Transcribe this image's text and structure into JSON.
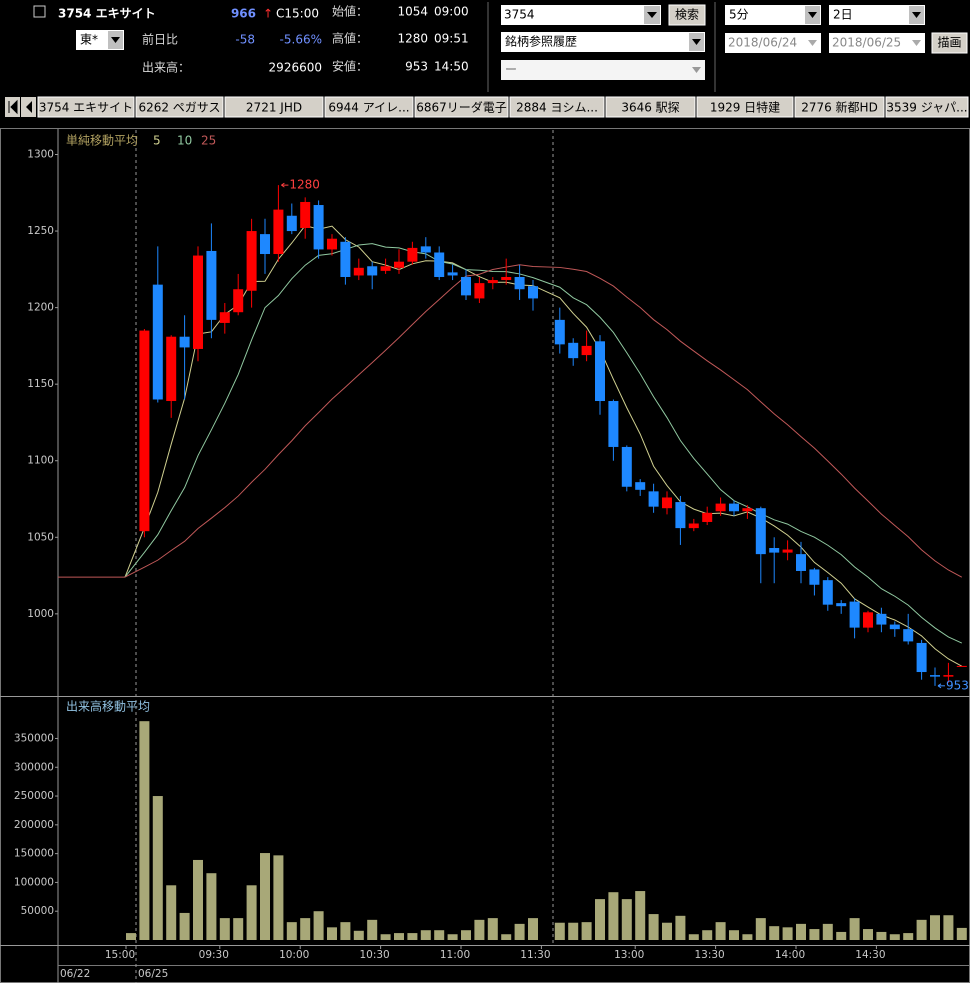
{
  "header": {
    "symbol_name": "3754 エキサイト",
    "price": "966",
    "price_arrow": "↑",
    "price_time": "C15:00",
    "market": "東*",
    "change_label": "前日比",
    "change": "-58",
    "change_pct": "-5.66%",
    "volume_label": "出来高：",
    "volume": "2926600",
    "open_label": "始値：",
    "open": "1054",
    "open_time": "09:00",
    "high_label": "高値：",
    "high": "1280",
    "high_time": "09:51",
    "low_label": "安値：",
    "low": "953",
    "low_time": "14:50"
  },
  "controls": {
    "code": "3754",
    "search": "検索",
    "history": "銘柄参照履歴",
    "blank": "ー",
    "interval": "5分",
    "days": "2日",
    "from": "2018/06/24",
    "to": "2018/06/25",
    "draw": "描画"
  },
  "tabs": [
    "3754 エキサイト",
    "6262 ペガサス",
    "2721 JHD",
    "6944 アイレ...",
    "6867リーダ電子",
    "2884 ヨシム...",
    "3646 駅探",
    "1929 日特建",
    "2776 新都HD",
    "3539 ジャパ..."
  ],
  "chart_data": [
    {
      "type": "candlestick",
      "title": "単純移動平均",
      "moving_averages": [
        {
          "period": 5,
          "color": "#d0d090"
        },
        {
          "period": 10,
          "color": "#90c8a0"
        },
        {
          "period": 25,
          "color": "#c05858"
        }
      ],
      "up_color": "#ff0000",
      "down_color": "#1e88ff",
      "previous_close": 1024,
      "open": [
        null,
        1054,
        1215,
        1139,
        1181,
        1173,
        1237,
        1190,
        1197,
        1211,
        1248,
        1235,
        1260,
        1252,
        1267,
        1238,
        1243,
        1221,
        1227,
        1224,
        1226,
        1230,
        1240,
        1236,
        1223,
        1220,
        1206,
        1216,
        1218,
        1220,
        1214,
        null,
        1192,
        1177,
        1169,
        1178,
        1139,
        1109,
        1086,
        1080,
        1069,
        1073,
        1056,
        1060,
        1067,
        1072,
        1067,
        1069,
        1043,
        1040,
        1039,
        1029,
        1022,
        1007,
        1008,
        991,
        1000,
        993,
        990,
        981,
        960,
        959,
        966
      ],
      "high": [
        null,
        1186,
        1240,
        1182,
        1195,
        1240,
        1255,
        1203,
        1222,
        1258,
        1258,
        1280,
        1268,
        1272,
        1270,
        1248,
        1246,
        1232,
        1230,
        1232,
        1238,
        1243,
        1246,
        1240,
        1228,
        1225,
        1220,
        1220,
        1232,
        1228,
        1218,
        null,
        1200,
        1180,
        1185,
        1182,
        1140,
        1110,
        1088,
        1085,
        1080,
        1077,
        1062,
        1070,
        1076,
        1074,
        1071,
        1070,
        1050,
        1048,
        1047,
        1030,
        1024,
        1009,
        1010,
        1002,
        1004,
        995,
        1000,
        983,
        965,
        968,
        966
      ],
      "low": [
        null,
        1050,
        1138,
        1128,
        1140,
        1165,
        1180,
        1183,
        1195,
        1200,
        1222,
        1230,
        1248,
        1245,
        1232,
        1234,
        1215,
        1218,
        1212,
        1222,
        1222,
        1228,
        1232,
        1218,
        1218,
        1205,
        1203,
        1212,
        1215,
        1205,
        1198,
        null,
        1170,
        1162,
        1165,
        1130,
        1100,
        1080,
        1077,
        1066,
        1065,
        1045,
        1054,
        1058,
        1064,
        1064,
        1062,
        1020,
        1020,
        1035,
        1020,
        1012,
        1002,
        1000,
        984,
        988,
        988,
        985,
        980,
        957,
        953,
        955,
        966
      ],
      "close": [
        null,
        1185,
        1140,
        1181,
        1174,
        1234,
        1192,
        1197,
        1212,
        1250,
        1235,
        1264,
        1250,
        1269,
        1238,
        1245,
        1220,
        1226,
        1221,
        1227,
        1230,
        1239,
        1236,
        1220,
        1221,
        1208,
        1216,
        1218,
        1220,
        1212,
        1206,
        null,
        1176,
        1167,
        1175,
        1139,
        1109,
        1083,
        1081,
        1070,
        1076,
        1056,
        1059,
        1066,
        1072,
        1067,
        1069,
        1039,
        1040,
        1042,
        1028,
        1019,
        1006,
        1005,
        991,
        1001,
        993,
        990,
        982,
        962,
        959,
        960,
        966
      ],
      "annotations": [
        {
          "value": 1280,
          "color": "#ff4040"
        },
        {
          "value": 953,
          "color": "#4090ff"
        }
      ],
      "ylim": [
        947,
        1316
      ],
      "yticks": [
        1000,
        1050,
        1100,
        1150,
        1200,
        1250,
        1300
      ]
    },
    {
      "type": "bar",
      "title": "出来高移動平均",
      "color": "#a8a878",
      "categories": [
        "15:00",
        null,
        null,
        null,
        null,
        null,
        null,
        "09:30",
        null,
        null,
        null,
        null,
        null,
        "10:00",
        null,
        null,
        null,
        null,
        null,
        "10:30",
        null,
        null,
        null,
        null,
        null,
        "11:00",
        null,
        null,
        null,
        null,
        null,
        "11:30",
        null,
        null,
        null,
        null,
        null,
        null,
        "13:00",
        null,
        null,
        null,
        null,
        null,
        "13:30",
        null,
        null,
        null,
        null,
        null,
        "14:00",
        null,
        null,
        null,
        null,
        null,
        "14:30",
        null,
        null,
        null,
        null,
        null,
        null
      ],
      "values": [
        12000,
        380000,
        250000,
        95000,
        47000,
        139000,
        116000,
        38000,
        38000,
        95000,
        151000,
        147000,
        31000,
        38000,
        50000,
        22000,
        31000,
        16000,
        35000,
        10000,
        12000,
        12000,
        17000,
        17000,
        10000,
        17000,
        35000,
        38000,
        10000,
        28000,
        38000,
        null,
        30000,
        30000,
        31000,
        71000,
        83000,
        71000,
        85000,
        45000,
        30000,
        42000,
        10000,
        17000,
        31000,
        17000,
        10000,
        38000,
        24000,
        22000,
        28000,
        19000,
        28000,
        14000,
        38000,
        19000,
        14000,
        10000,
        12000,
        35000,
        43000,
        43000,
        21000
      ],
      "dates": [
        "06/22",
        "06/25"
      ],
      "ylim": [
        0,
        422000
      ],
      "yticks": [
        50000,
        100000,
        150000,
        200000,
        250000,
        300000,
        350000
      ]
    }
  ]
}
